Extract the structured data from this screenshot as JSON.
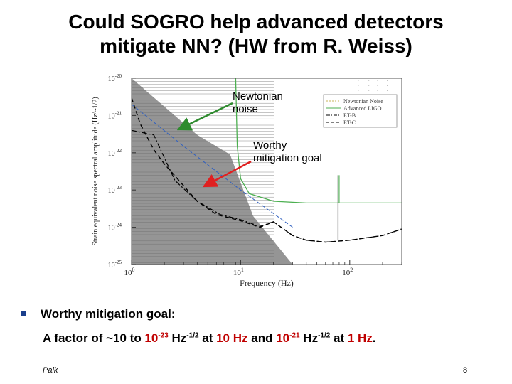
{
  "slide": {
    "title_line1": "Could SOGRO help advanced detectors",
    "title_line2": "mitigate NN? (HW from R. Weiss)",
    "annotations": {
      "newtonian_line1": "Newtonian",
      "newtonian_line2": "noise",
      "worthy_line1": "Worthy",
      "worthy_line2": "mitigation goal"
    },
    "bullet": "Worthy mitigation goal:",
    "detail": {
      "prefix": "A factor of ~10 to ",
      "v1_base": "10",
      "v1_exp": "-23",
      "u1_base": " Hz",
      "u1_exp": "-1/2",
      "mid1": " at ",
      "f1": "10 Hz",
      "mid2": " and ",
      "v2_base": "10",
      "v2_exp": "-21",
      "u2_base": " Hz",
      "u2_exp": "-1/2",
      "mid3": " at ",
      "f2": "1 Hz",
      "suffix": "."
    },
    "author": "Paik",
    "page_number": "8"
  },
  "colors": {
    "newtonian_fill": "#8a8a8a",
    "ligo_curve": "#4caf50",
    "red_text": "#c00000",
    "arrow_green": "#2e8b2e",
    "arrow_red": "#e02020",
    "blue_dashed": "#3060c0"
  },
  "chart_data": {
    "type": "line",
    "xlabel": "Frequency (Hz)",
    "ylabel": "Strain equivalent noise spectral amplitude (Hz^-1/2)",
    "xscale": "log",
    "yscale": "log",
    "xlim": [
      1,
      300
    ],
    "ylim": [
      1e-25,
      1e-20
    ],
    "x_ticks": [
      {
        "value": 1,
        "base": "10",
        "exp": "0"
      },
      {
        "value": 10,
        "base": "10",
        "exp": "1"
      },
      {
        "value": 100,
        "base": "10",
        "exp": "2"
      }
    ],
    "y_ticks": [
      {
        "value": 1e-20,
        "base": "10",
        "exp": "-20"
      },
      {
        "value": 1e-21,
        "base": "10",
        "exp": "-21"
      },
      {
        "value": 1e-22,
        "base": "10",
        "exp": "-22"
      },
      {
        "value": 1e-23,
        "base": "10",
        "exp": "-23"
      },
      {
        "value": 1e-24,
        "base": "10",
        "exp": "-24"
      },
      {
        "value": 1e-25,
        "base": "10",
        "exp": "-25"
      }
    ],
    "legend_position": "top-right",
    "series": [
      {
        "name": "Newtonian Noise",
        "style": "filled-area",
        "x": [
          1,
          4,
          8,
          13,
          30
        ],
        "y": [
          1e-20,
          3e-22,
          9e-23,
          2e-24,
          1e-25
        ]
      },
      {
        "name": "Advanced LIGO",
        "style": "solid",
        "x": [
          9,
          9.3,
          10,
          12,
          20,
          40,
          100,
          300
        ],
        "y": [
          1e-20,
          1.5e-22,
          2e-23,
          8e-24,
          5e-24,
          4.5e-24,
          4.5e-24,
          4.5e-24
        ]
      },
      {
        "name": "ET-B",
        "style": "dash-dot",
        "x": [
          1,
          1.6,
          2.5,
          4,
          6.5,
          10,
          15,
          20,
          30,
          40,
          60,
          100,
          200,
          300
        ],
        "y": [
          4e-22,
          3e-22,
          1.8e-23,
          5e-24,
          2.2e-24,
          1.6e-24,
          1.05e-24,
          1.4e-24,
          6e-25,
          4.5e-25,
          4e-25,
          4.5e-25,
          6e-25,
          9e-25
        ]
      },
      {
        "name": "ET-C",
        "style": "dashed",
        "x": [
          1,
          1.2,
          1.6,
          2,
          3,
          4,
          6,
          10,
          15,
          20,
          30,
          40,
          60,
          100,
          200,
          300
        ],
        "y": [
          3e-21,
          6e-22,
          1.2e-22,
          5e-23,
          1.3e-23,
          5e-24,
          2.2e-24,
          1.5e-24,
          1e-24,
          1.4e-24,
          6e-25,
          4.5e-25,
          4e-25,
          4.5e-25,
          6e-25,
          9e-25
        ]
      },
      {
        "name": "",
        "style": "blue-dashed",
        "x": [
          1,
          3,
          10,
          30
        ],
        "y": [
          2e-21,
          1.5e-22,
          1e-23,
          1e-24
        ]
      }
    ]
  }
}
